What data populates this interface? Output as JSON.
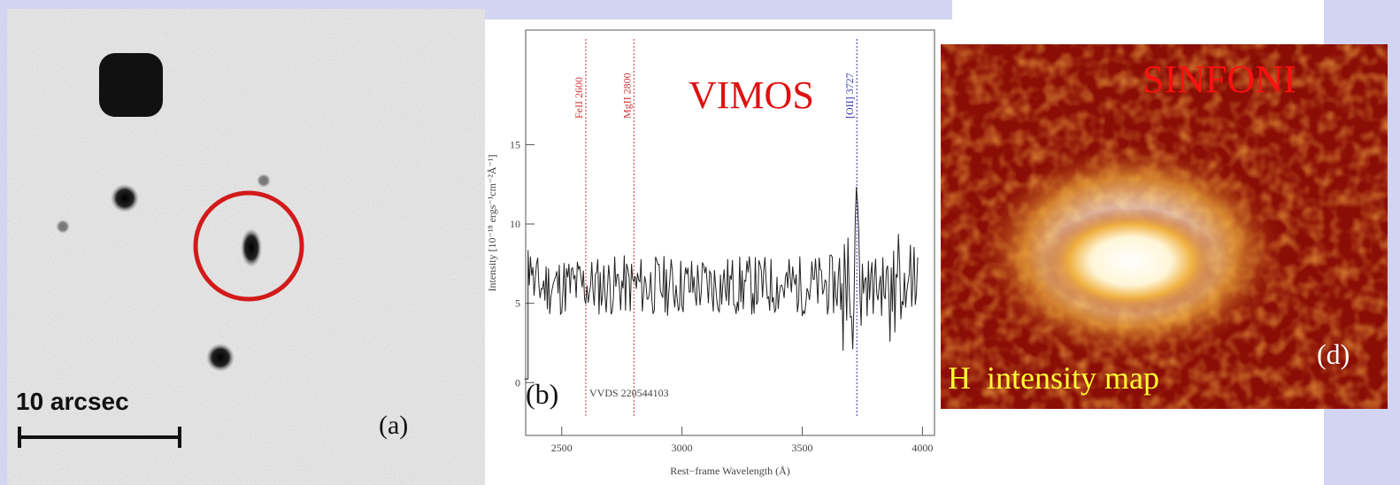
{
  "panel_a": {
    "scale_label": "10 arcsec",
    "panel_letter": "(a)"
  },
  "panel_b": {
    "title": "VIMOS",
    "panel_letter": "(b)",
    "object_id": "VVDS 220544103",
    "line_labels": [
      "FeII 2600",
      "MgII 2800",
      "[OII] 3727"
    ],
    "colors": {
      "FeII 2600": "#cc3333",
      "MgII 2800": "#cc3333",
      "[OII] 3727": "#3333aa",
      "title": "#e01010"
    },
    "chart_data": {
      "type": "line",
      "xlabel": "Rest−frame Wavelength (Å)",
      "ylabel": "Intensity [10⁻¹⁸ ergs⁻¹cm⁻²Å⁻¹]",
      "xlim": [
        2350,
        4050
      ],
      "ylim": [
        -0.3,
        2.0
      ],
      "x_ticks": [
        "2500",
        "3000",
        "3500",
        "4000"
      ],
      "y_ticks": [
        "0",
        "5",
        "10",
        "15"
      ],
      "lines": [
        {
          "label": "FeII 2600",
          "x": 2600
        },
        {
          "label": "MgII 2800",
          "x": 2800
        },
        {
          "label": "[OII] 3727",
          "x": 3727
        }
      ],
      "spectrum_x_range": [
        2360,
        3980
      ],
      "baseline": 0.55
    }
  },
  "panel_c": {
    "title": "SINFONI",
    "subtitle": "H  intensity map",
    "panel_letter": "(d)",
    "colors": {
      "title": "#ff1010",
      "subtitle": "#ffff33"
    }
  }
}
